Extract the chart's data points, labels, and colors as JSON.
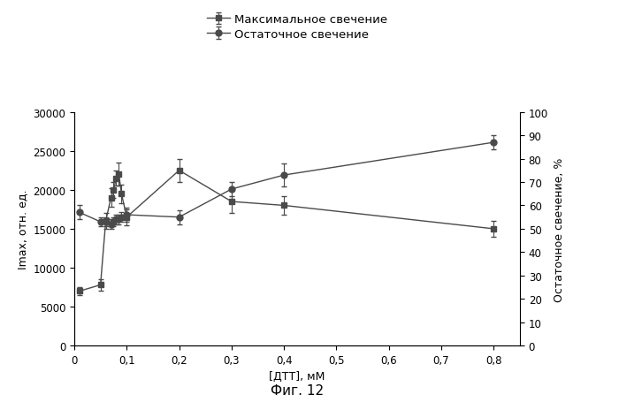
{
  "title_fig": "Фиг. 12",
  "xlabel": "[ДТТ], мМ",
  "ylabel_left": "Imax, отн. ед.",
  "ylabel_right": "Остаточное свечение, %",
  "legend1": "Максимальное свечение",
  "legend2": "Остаточное свечение",
  "series1_x": [
    0.01,
    0.05,
    0.06,
    0.07,
    0.075,
    0.08,
    0.085,
    0.09,
    0.1,
    0.2,
    0.3,
    0.4,
    0.8
  ],
  "series1_y": [
    7000,
    7800,
    16000,
    19000,
    20000,
    21500,
    22000,
    19500,
    16500,
    22500,
    18500,
    18000,
    15000
  ],
  "series1_yerr": [
    500,
    700,
    1000,
    1200,
    1000,
    1000,
    1500,
    1200,
    1000,
    1500,
    1500,
    1200,
    1000
  ],
  "series2_x": [
    0.01,
    0.05,
    0.06,
    0.07,
    0.075,
    0.08,
    0.085,
    0.09,
    0.1,
    0.2,
    0.3,
    0.4,
    0.8
  ],
  "series2_y": [
    57,
    53,
    53,
    52,
    53,
    54,
    54,
    55,
    56,
    55,
    67,
    73,
    87
  ],
  "series2_yerr": [
    3,
    2,
    2,
    2,
    2,
    2,
    2,
    2,
    3,
    3,
    3,
    5,
    3
  ],
  "xlim": [
    0,
    0.85
  ],
  "ylim_left": [
    0,
    30000
  ],
  "ylim_right": [
    0,
    100
  ],
  "xticks": [
    0,
    0.1,
    0.2,
    0.3,
    0.4,
    0.5,
    0.6,
    0.7,
    0.8
  ],
  "yticks_left": [
    0,
    5000,
    10000,
    15000,
    20000,
    25000,
    30000
  ],
  "yticks_right": [
    0,
    10,
    20,
    30,
    40,
    50,
    60,
    70,
    80,
    90,
    100
  ],
  "line_color": "#4a4a4a",
  "marker_square": "s",
  "marker_circle": "o",
  "markersize": 5,
  "linewidth": 1.0,
  "bg_color": "#ffffff",
  "title_fontsize": 11,
  "label_fontsize": 9,
  "tick_fontsize": 8.5,
  "legend_fontsize": 9.5
}
